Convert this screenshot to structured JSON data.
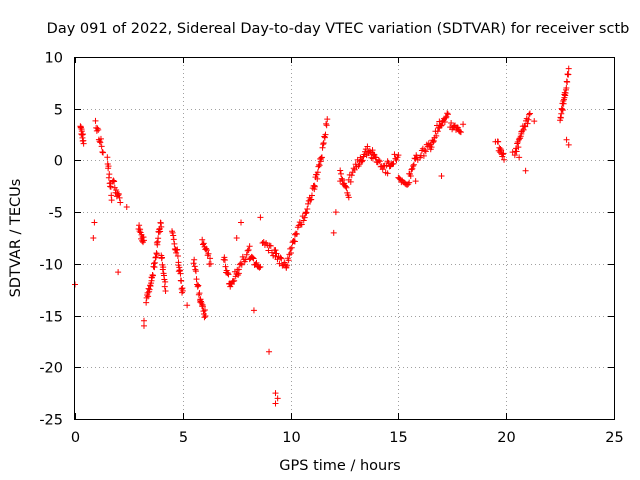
{
  "chart_data": {
    "type": "scatter",
    "title": "Day 091 of 2022, Sidereal Day-to-day VTEC variation (SDTVAR) for receiver sctb",
    "xlabel": "GPS time / hours",
    "ylabel": "SDTVAR / TECUs",
    "xlim": [
      0,
      25
    ],
    "ylim": [
      -25,
      10
    ],
    "xticks": [
      0,
      5,
      10,
      15,
      20,
      25
    ],
    "yticks": [
      -25,
      -20,
      -15,
      -10,
      -5,
      0,
      5,
      10
    ],
    "grid": true,
    "marker": "+",
    "color": "#ff0000",
    "series": [
      {
        "name": "sctb",
        "segments": [
          {
            "x": [
              0.25,
              0.4
            ],
            "y": [
              3.0,
              2.0
            ]
          },
          {
            "x": [
              0.95,
              1.3
            ],
            "y": [
              3.5,
              1.0
            ]
          },
          {
            "x": [
              1.5,
              1.7
            ],
            "y": [
              0.0,
              -3.5
            ]
          },
          {
            "x": [
              1.75,
              2.1
            ],
            "y": [
              -2.0,
              -4.0
            ]
          },
          {
            "x": [
              2.95,
              3.2
            ],
            "y": [
              -6.5,
              -8.0
            ]
          },
          {
            "x": [
              3.3,
              3.55
            ],
            "y": [
              -13.5,
              -12.0
            ]
          },
          {
            "x": [
              3.55,
              3.8
            ],
            "y": [
              -11.5,
              -9.0
            ]
          },
          {
            "x": [
              3.8,
              4.0
            ],
            "y": [
              -8.0,
              -6.0
            ]
          },
          {
            "x": [
              4.0,
              4.2
            ],
            "y": [
              -9.0,
              -12.5
            ]
          },
          {
            "x": [
              4.5,
              4.8
            ],
            "y": [
              -7.0,
              -9.5
            ]
          },
          {
            "x": [
              4.8,
              5.0
            ],
            "y": [
              -10.0,
              -13.0
            ]
          },
          {
            "x": [
              5.5,
              5.8
            ],
            "y": [
              -9.5,
              -13.5
            ]
          },
          {
            "x": [
              5.8,
              6.05
            ],
            "y": [
              -13.5,
              -15.0
            ]
          },
          {
            "x": [
              5.9,
              6.3
            ],
            "y": [
              -8.0,
              -10.0
            ]
          },
          {
            "x": [
              6.9,
              7.2
            ],
            "y": [
              -9.5,
              -12.0
            ]
          },
          {
            "x": [
              7.2,
              7.6
            ],
            "y": [
              -12.0,
              -10.5
            ]
          },
          {
            "x": [
              7.6,
              8.1
            ],
            "y": [
              -10.5,
              -8.5
            ]
          },
          {
            "x": [
              8.1,
              8.6
            ],
            "y": [
              -9.5,
              -10.5
            ]
          },
          {
            "x": [
              8.7,
              9.3
            ],
            "y": [
              -8.0,
              -9.0
            ]
          },
          {
            "x": [
              9.3,
              9.8
            ],
            "y": [
              -9.0,
              -10.5
            ]
          },
          {
            "x": [
              9.8,
              10.2
            ],
            "y": [
              -10.0,
              -7.5
            ]
          },
          {
            "x": [
              10.2,
              10.7
            ],
            "y": [
              -7.5,
              -5.0
            ]
          },
          {
            "x": [
              10.7,
              11.1
            ],
            "y": [
              -5.0,
              -2.5
            ]
          },
          {
            "x": [
              11.1,
              11.4
            ],
            "y": [
              -2.5,
              0.0
            ]
          },
          {
            "x": [
              11.4,
              11.7
            ],
            "y": [
              0.0,
              4.0
            ]
          },
          {
            "x": [
              12.3,
              12.7
            ],
            "y": [
              -1.0,
              -3.5
            ]
          },
          {
            "x": [
              12.7,
              13.2
            ],
            "y": [
              -2.0,
              0.0
            ]
          },
          {
            "x": [
              13.2,
              13.6
            ],
            "y": [
              0.0,
              1.0
            ]
          },
          {
            "x": [
              13.6,
              14.0
            ],
            "y": [
              1.0,
              0.0
            ]
          },
          {
            "x": [
              14.0,
              14.5
            ],
            "y": [
              0.0,
              -1.0
            ]
          },
          {
            "x": [
              14.5,
              15.0
            ],
            "y": [
              -0.5,
              0.5
            ]
          },
          {
            "x": [
              15.0,
              15.5
            ],
            "y": [
              -2.0,
              -2.5
            ]
          },
          {
            "x": [
              15.5,
              15.9
            ],
            "y": [
              -1.5,
              0.5
            ]
          },
          {
            "x": [
              16.0,
              16.5
            ],
            "y": [
              0.5,
              1.5
            ]
          },
          {
            "x": [
              16.5,
              16.9
            ],
            "y": [
              1.5,
              3.5
            ]
          },
          {
            "x": [
              16.9,
              17.3
            ],
            "y": [
              3.5,
              4.5
            ]
          },
          {
            "x": [
              17.4,
              17.9
            ],
            "y": [
              3.5,
              3.0
            ]
          },
          {
            "x": [
              19.6,
              19.9
            ],
            "y": [
              1.5,
              0.5
            ]
          },
          {
            "x": [
              20.4,
              20.7
            ],
            "y": [
              0.5,
              2.5
            ]
          },
          {
            "x": [
              20.7,
              21.1
            ],
            "y": [
              2.5,
              4.5
            ]
          },
          {
            "x": [
              22.5,
              22.7
            ],
            "y": [
              4.0,
              6.0
            ]
          },
          {
            "x": [
              22.7,
              22.9
            ],
            "y": [
              6.0,
              9.0
            ]
          }
        ],
        "isolated": [
          {
            "x": 0.0,
            "y": -12.0
          },
          {
            "x": 0.9,
            "y": -6.0
          },
          {
            "x": 0.85,
            "y": -7.5
          },
          {
            "x": 2.0,
            "y": -10.8
          },
          {
            "x": 2.4,
            "y": -4.5
          },
          {
            "x": 3.2,
            "y": -15.5
          },
          {
            "x": 3.2,
            "y": -16.0
          },
          {
            "x": 5.2,
            "y": -14.0
          },
          {
            "x": 7.5,
            "y": -7.5
          },
          {
            "x": 7.7,
            "y": -6.0
          },
          {
            "x": 8.3,
            "y": -14.5
          },
          {
            "x": 8.6,
            "y": -5.5
          },
          {
            "x": 9.0,
            "y": -18.5
          },
          {
            "x": 9.3,
            "y": -22.5
          },
          {
            "x": 9.3,
            "y": -23.5
          },
          {
            "x": 9.4,
            "y": -23.0
          },
          {
            "x": 12.0,
            "y": -7.0
          },
          {
            "x": 12.1,
            "y": -5.0
          },
          {
            "x": 12.3,
            "y": -2.0
          },
          {
            "x": 13.8,
            "y": 1.0
          },
          {
            "x": 15.8,
            "y": -2.0
          },
          {
            "x": 17.0,
            "y": -1.5
          },
          {
            "x": 18.0,
            "y": 3.5
          },
          {
            "x": 19.5,
            "y": 1.8
          },
          {
            "x": 20.3,
            "y": 0.8
          },
          {
            "x": 20.6,
            "y": 0.3
          },
          {
            "x": 20.9,
            "y": -1.0
          },
          {
            "x": 21.3,
            "y": 3.8
          },
          {
            "x": 22.9,
            "y": 1.5
          },
          {
            "x": 22.8,
            "y": 2.0
          }
        ]
      }
    ]
  }
}
